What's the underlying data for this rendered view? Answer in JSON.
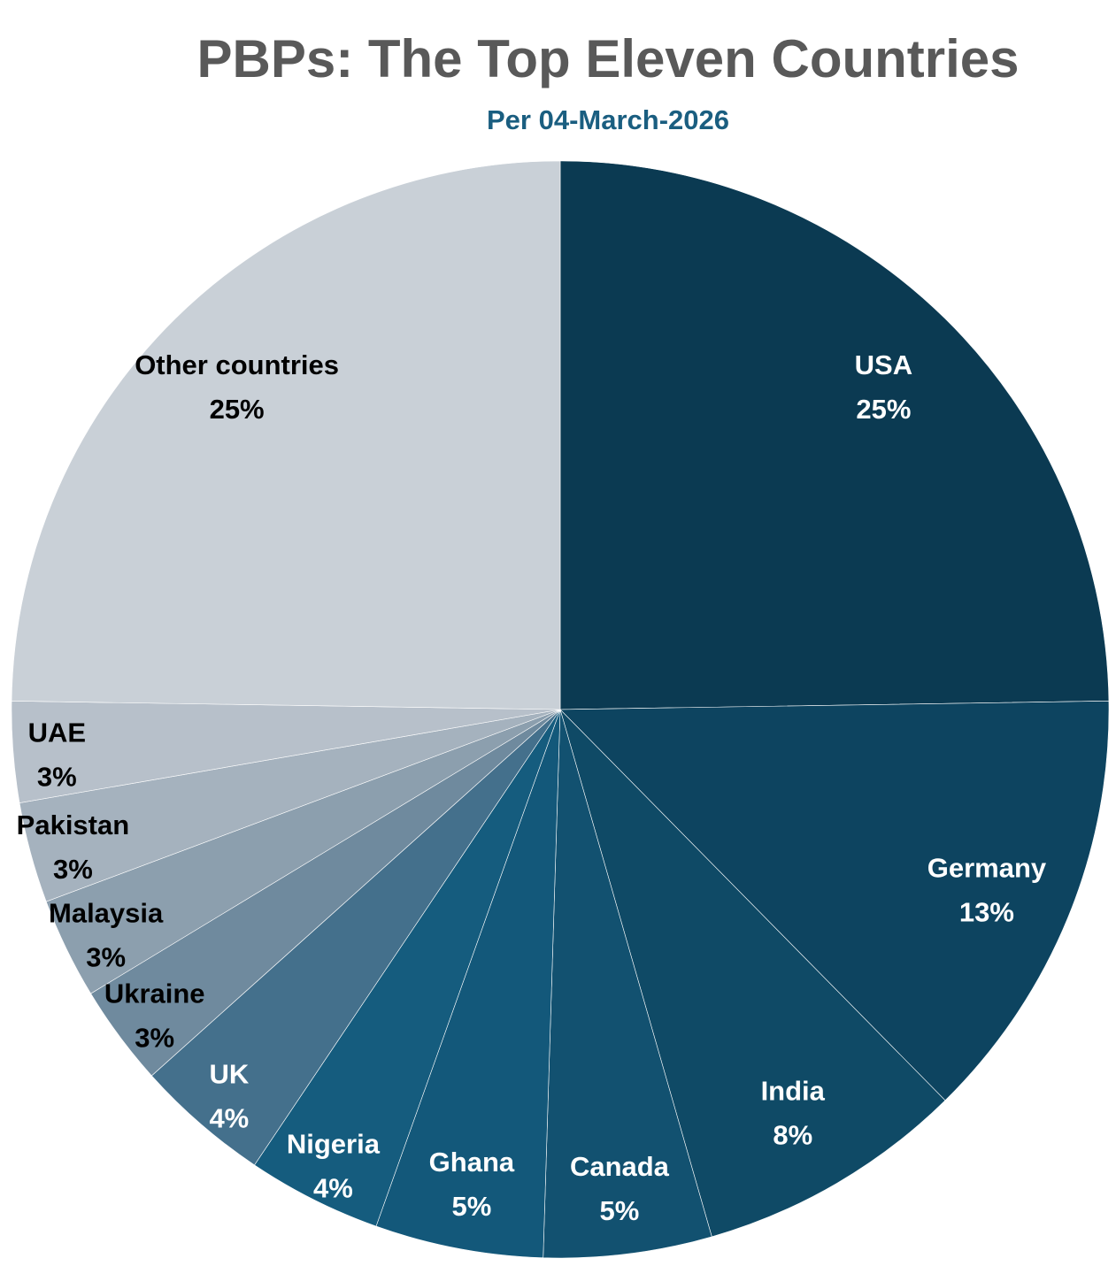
{
  "chart_data": {
    "type": "pie",
    "title": "PBPs: The Top Eleven Countries",
    "subtitle": "Per 04-March-2026",
    "start": "top",
    "direction": "clockwise",
    "slices": [
      {
        "label": "USA",
        "value": 25,
        "display": "25%",
        "color": "#0b3a52",
        "text_color": "#ffffff"
      },
      {
        "label": "Germany",
        "value": 13,
        "display": "13%",
        "color": "#0d4460",
        "text_color": "#ffffff"
      },
      {
        "label": "India",
        "value": 8,
        "display": "8%",
        "color": "#0f4a66",
        "text_color": "#ffffff"
      },
      {
        "label": "Canada",
        "value": 5,
        "display": "5%",
        "color": "#125170",
        "text_color": "#ffffff"
      },
      {
        "label": "Ghana",
        "value": 5,
        "display": "5%",
        "color": "#13587a",
        "text_color": "#ffffff"
      },
      {
        "label": "Nigeria",
        "value": 4,
        "display": "4%",
        "color": "#155c7e",
        "text_color": "#ffffff"
      },
      {
        "label": "UK",
        "value": 4,
        "display": "4%",
        "color": "#44708c",
        "text_color": "#ffffff"
      },
      {
        "label": "Ukraine",
        "value": 3,
        "display": "3%",
        "color": "#6f8a9e",
        "text_color": "#000000"
      },
      {
        "label": "Malaysia",
        "value": 3,
        "display": "3%",
        "color": "#8c9fae",
        "text_color": "#000000"
      },
      {
        "label": "Pakistan",
        "value": 3,
        "display": "3%",
        "color": "#a5b2be",
        "text_color": "#000000"
      },
      {
        "label": "UAE",
        "value": 3,
        "display": "3%",
        "color": "#b7c0ca",
        "text_color": "#000000"
      },
      {
        "label": "Other countries",
        "value": 25,
        "display": "25%",
        "color": "#c9d0d7",
        "text_color": "#000000"
      }
    ]
  }
}
